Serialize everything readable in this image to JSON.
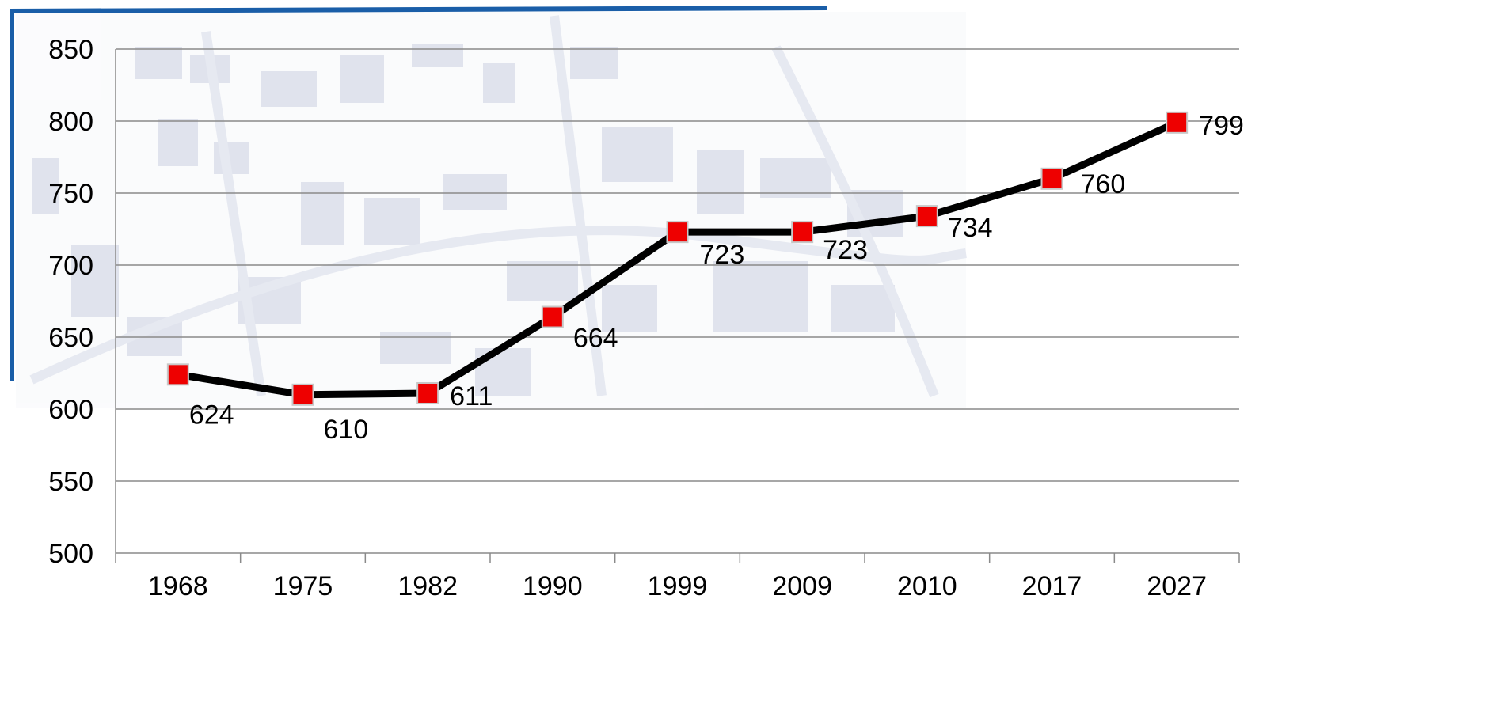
{
  "chart_data": {
    "type": "line",
    "title": "",
    "xlabel": "",
    "ylabel": "",
    "categories": [
      "1968",
      "1975",
      "1982",
      "1990",
      "1999",
      "2009",
      "2010",
      "2017",
      "2027"
    ],
    "series": [
      {
        "values": [
          624,
          610,
          611,
          664,
          723,
          723,
          734,
          760,
          799
        ]
      }
    ],
    "data_labels": [
      "624",
      "610",
      "611",
      "664",
      "723",
      "723",
      "734",
      "760",
      "799"
    ],
    "yticks": [
      "500",
      "550",
      "600",
      "650",
      "700",
      "750",
      "800",
      "850"
    ],
    "ylim": [
      500,
      850
    ],
    "grid": "horizontal",
    "legend": "none",
    "colors": {
      "line": "#000000",
      "marker": "#ee0000",
      "marker_border": "#c8c8c8",
      "grid": "#8a8a8a",
      "frame": "#1a5ea8",
      "map": "#b8bfd6"
    }
  }
}
